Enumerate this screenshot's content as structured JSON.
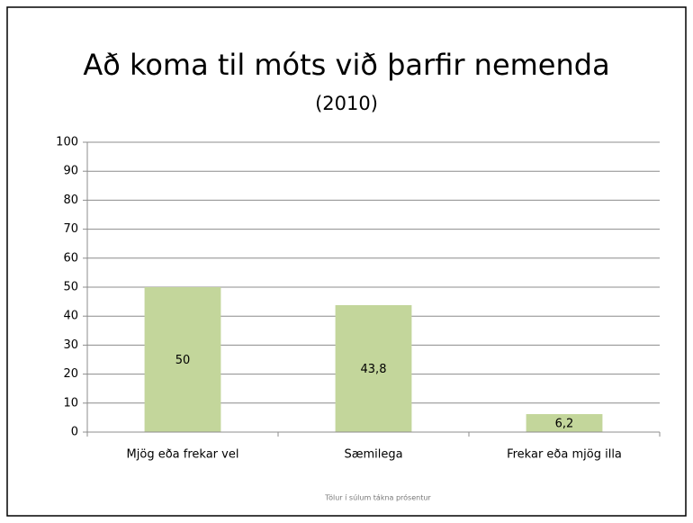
{
  "chart_data": {
    "type": "bar",
    "title": "Að koma til móts við þarfir nemenda",
    "subtitle": "(2010)",
    "categories": [
      "Mjög eða frekar vel",
      "Sæmilega",
      "Frekar eða mjög illa"
    ],
    "values": [
      50,
      43.8,
      6.2
    ],
    "value_labels": [
      "50",
      "43,8",
      "6,2"
    ],
    "color": "#c3d69b",
    "ylim": [
      0,
      100
    ],
    "yticks": [
      0,
      10,
      20,
      30,
      40,
      50,
      60,
      70,
      80,
      90,
      100
    ],
    "grid": true,
    "footnote": "Tölur í súlum tákna prósentur"
  }
}
